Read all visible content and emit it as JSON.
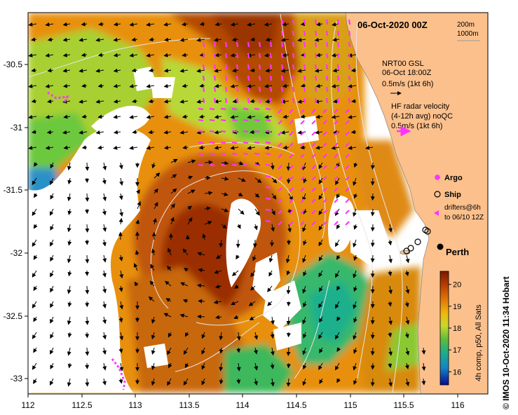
{
  "header": {
    "date": "06-Oct-2020 00Z",
    "contours": [
      "200m",
      "1000m"
    ]
  },
  "legend": {
    "gsl_title": "NRT00 GSL",
    "gsl_time": "06-Oct 18:00Z",
    "gsl_scale": "0.5m/s (1kt 6h)",
    "hf_title": "HF radar velocity",
    "hf_sub": "(4-12h avg) noQC",
    "hf_scale": "0.5m/s (1kt 6h)",
    "argo": "Argo",
    "ship": "Ship",
    "drifters_1": "drifters@6h",
    "drifters_2": "to 06/10 12Z"
  },
  "place": {
    "perth": "Perth"
  },
  "colorbar": {
    "ticks": [
      "20",
      "19",
      "18",
      "17",
      "16"
    ],
    "tick_values": [
      20,
      19,
      18,
      17,
      16
    ],
    "range": [
      15.4,
      20.6
    ],
    "title": "4h comp, p50, All Sats"
  },
  "credit": "© IMOS 10-Oct-2020 11:34 Hobart",
  "axes": {
    "x_ticks": [
      "112",
      "112.5",
      "113",
      "113.5",
      "114",
      "114.5",
      "115",
      "115.5",
      "116"
    ],
    "y_ticks": [
      "-30.5",
      "-31",
      "-31.5",
      "-32",
      "-32.5",
      "-33"
    ]
  },
  "colors": {
    "land": "#fcc08c",
    "sst_warm": "#a33a06",
    "sst_mid": "#e88a0c",
    "sst_cool": "#5cbf3a",
    "hf_arrows": "#ff33ff"
  }
}
